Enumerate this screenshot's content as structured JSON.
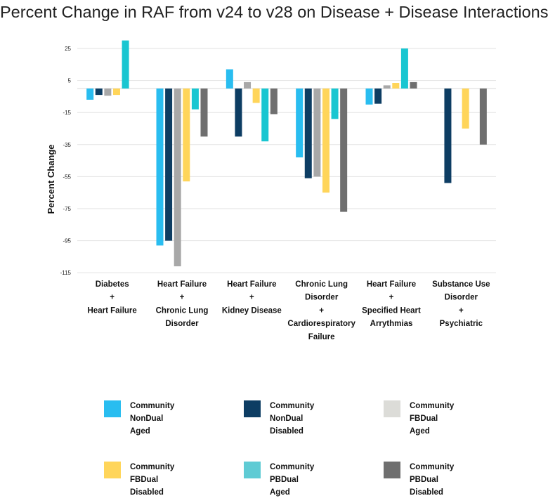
{
  "chart_data": {
    "type": "bar",
    "title": "Percent Change in RAF from v24 to v28 on Disease + Disease Interactions",
    "xlabel": "",
    "ylabel": "Percent Change",
    "ylim": [
      -115,
      30
    ],
    "yticks": [
      25,
      5,
      -15,
      -35,
      -55,
      -75,
      -95,
      -115
    ],
    "grid": true,
    "legend_position": "bottom",
    "categories": [
      [
        "Diabetes",
        "+",
        "Heart Failure"
      ],
      [
        "Heart Failure",
        "+",
        "Chronic Lung",
        "Disorder"
      ],
      [
        "Heart Failure",
        "+",
        "Kidney Disease"
      ],
      [
        "Chronic Lung",
        "Disorder",
        "+",
        "Cardiorespiratory",
        "Failure"
      ],
      [
        "Heart Failure",
        "+",
        "Specified Heart",
        "Arrythmias"
      ],
      [
        "Substance Use",
        "Disorder",
        "+",
        "Psychiatric"
      ]
    ],
    "series": [
      {
        "name": [
          "Community",
          "NonDual",
          "Aged"
        ],
        "color": "#29bdf0",
        "values": [
          -7,
          -98,
          12,
          -43,
          -10,
          0
        ]
      },
      {
        "name": [
          "Community",
          "NonDual",
          "Disabled"
        ],
        "color": "#0d3d63",
        "values": [
          -4,
          -95,
          -30,
          -56,
          -9.5,
          -59
        ]
      },
      {
        "name": [
          "Community",
          "FBDual",
          "Aged"
        ],
        "color": "#a8a8a8",
        "values": [
          -4.5,
          -111,
          4,
          -55,
          2,
          0
        ]
      },
      {
        "name": [
          "Community",
          "FBDual",
          "Disabled"
        ],
        "color": "#ffd55a",
        "values": [
          -4,
          -58,
          -9,
          -65,
          3.5,
          -25
        ]
      },
      {
        "name": [
          "Community",
          "PBDual",
          "Aged"
        ],
        "color": "#19c6d1",
        "values": [
          30,
          -13,
          -33,
          -19,
          25,
          0
        ]
      },
      {
        "name": [
          "Community",
          "PBDual",
          "Disabled"
        ],
        "color": "#6f6f6f",
        "values": [
          0,
          -30,
          -16,
          -77,
          4,
          -35
        ]
      }
    ]
  },
  "legend_swatch_colors": [
    "#29bdf0",
    "#0d3d63",
    "#dcdcd8",
    "#ffd55a",
    "#5fcbd4",
    "#6f6f6f"
  ]
}
